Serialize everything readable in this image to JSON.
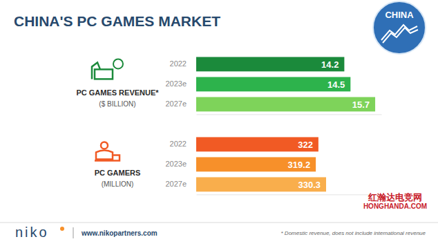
{
  "title": "CHINA'S PC GAMES MARKET",
  "badge": "CHINA",
  "brand": "niko",
  "url": "www.nikopartners.com",
  "footnote": "* Domestic revenue, does not include international revenue",
  "watermark": [
    "红瀚达电竞网",
    "HONGHANDA.COM"
  ],
  "chart_data": [
    {
      "type": "bar",
      "orientation": "horizontal",
      "title": "PC GAMES REVENUE*",
      "subtitle": "($ BILLION)",
      "categories": [
        "2022",
        "2023e",
        "2027e"
      ],
      "values": [
        14.2,
        14.5,
        15.7
      ],
      "colors": [
        "#1b8a3b",
        "#2db34c",
        "#7ed35a"
      ],
      "xlim": [
        7,
        16
      ],
      "data_labels": true,
      "tick_labels": "y"
    },
    {
      "type": "bar",
      "orientation": "horizontal",
      "title": "PC GAMERS",
      "subtitle": "(MILLION)",
      "categories": [
        "2022",
        "2023e",
        "2027e"
      ],
      "values": [
        322,
        319.2,
        330.3
      ],
      "colors": [
        "#f15a24",
        "#f7902a",
        "#f9ae4c"
      ],
      "xlim": [
        190,
        390
      ],
      "data_labels": true,
      "tick_labels": "y"
    }
  ]
}
